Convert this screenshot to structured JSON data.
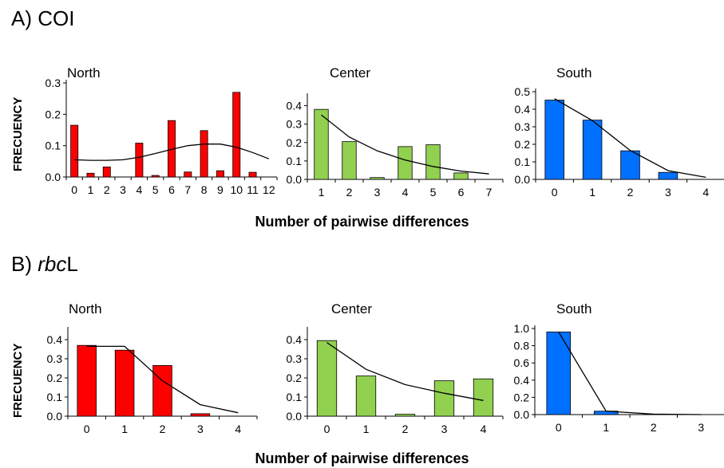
{
  "rows": [
    {
      "letter": "A)",
      "marker_plain": "COI",
      "marker_italic": "",
      "ylabel": "FRECUENCY",
      "xlabel": "Number of pairwise differences"
    },
    {
      "letter": "B)",
      "marker_plain": "L",
      "marker_italic": "rbc",
      "ylabel": "FRECUENCY",
      "xlabel": "Number of pairwise differences"
    }
  ],
  "colors": {
    "north": "#ff0000",
    "center": "#92d050",
    "south": "#0070ff",
    "line": "#000000"
  },
  "chart_data": [
    {
      "type": "bar",
      "title": "North",
      "color": "#ff0000",
      "bar_width_frac": 0.45,
      "categories": [
        "0",
        "1",
        "2",
        "3",
        "4",
        "5",
        "6",
        "7",
        "8",
        "9",
        "10",
        "11",
        "12"
      ],
      "values": [
        0.165,
        0.012,
        0.032,
        0.0,
        0.108,
        0.005,
        0.18,
        0.016,
        0.148,
        0.02,
        0.27,
        0.015,
        null
      ],
      "line": [
        0.055,
        0.053,
        0.053,
        0.055,
        0.063,
        0.075,
        0.088,
        0.1,
        0.105,
        0.105,
        0.095,
        0.078,
        0.058
      ],
      "ylim": [
        0,
        0.3
      ],
      "yticks": [
        "0.0",
        "0.1",
        "0.2",
        "0.3"
      ]
    },
    {
      "type": "bar",
      "title": "Center",
      "color": "#92d050",
      "bar_width_frac": 0.5,
      "categories": [
        "1",
        "2",
        "3",
        "4",
        "5",
        "6",
        "7"
      ],
      "values": [
        0.38,
        0.205,
        0.01,
        0.178,
        0.188,
        0.035,
        null
      ],
      "line": [
        0.35,
        0.23,
        0.155,
        0.105,
        0.07,
        0.045,
        0.03
      ],
      "ylim": [
        0,
        0.45
      ],
      "yticks": [
        "0.0",
        "0.1",
        "0.2",
        "0.3",
        "0.4"
      ]
    },
    {
      "type": "bar",
      "title": "South",
      "color": "#0070ff",
      "bar_width_frac": 0.5,
      "categories": [
        "0",
        "1",
        "2",
        "3",
        "4"
      ],
      "values": [
        0.452,
        0.338,
        0.163,
        0.04,
        null
      ],
      "line": [
        0.46,
        0.335,
        0.165,
        0.05,
        0.012
      ],
      "ylim": [
        0,
        0.5
      ],
      "yticks": [
        "0.0",
        "0.1",
        "0.2",
        "0.3",
        "0.4",
        "0.5"
      ]
    },
    {
      "type": "bar",
      "title": "North",
      "color": "#ff0000",
      "bar_width_frac": 0.5,
      "categories": [
        "0",
        "1",
        "2",
        "3",
        "4"
      ],
      "values": [
        0.37,
        0.345,
        0.265,
        0.013,
        null
      ],
      "line": [
        0.365,
        0.365,
        0.185,
        0.06,
        0.018
      ],
      "ylim": [
        0,
        0.45
      ],
      "yticks": [
        "0.0",
        "0.1",
        "0.2",
        "0.3",
        "0.4"
      ]
    },
    {
      "type": "bar",
      "title": "Center",
      "color": "#92d050",
      "bar_width_frac": 0.5,
      "categories": [
        "0",
        "1",
        "2",
        "3",
        "4"
      ],
      "values": [
        0.395,
        0.21,
        0.01,
        0.185,
        0.195
      ],
      "line": [
        0.385,
        0.245,
        0.165,
        0.12,
        0.082
      ],
      "ylim": [
        0,
        0.45
      ],
      "yticks": [
        "0.0",
        "0.1",
        "0.2",
        "0.3",
        "0.4"
      ]
    },
    {
      "type": "bar",
      "title": "South",
      "color": "#0070ff",
      "bar_width_frac": 0.5,
      "categories": [
        "0",
        "1",
        "2",
        "3"
      ],
      "values": [
        0.96,
        0.04,
        null,
        null
      ],
      "line": [
        0.96,
        0.04,
        0.005,
        0.0
      ],
      "ylim": [
        0,
        1.0
      ],
      "yticks": [
        "0.0",
        "0.2",
        "0.4",
        "0.6",
        "0.8",
        "1.0"
      ]
    }
  ]
}
